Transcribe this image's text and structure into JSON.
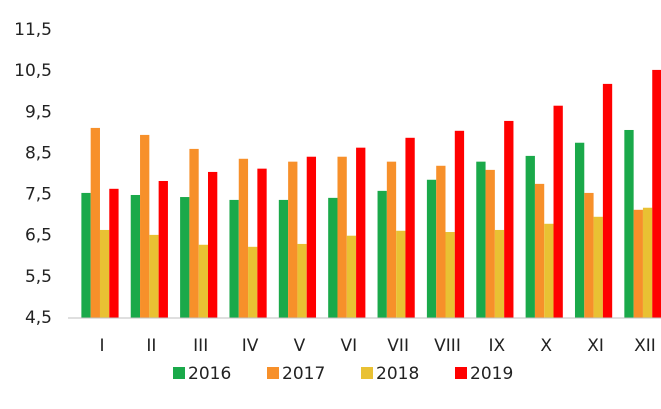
{
  "chart_data": {
    "type": "bar",
    "categories": [
      "I",
      "II",
      "III",
      "IV",
      "V",
      "VI",
      "VII",
      "VIII",
      "IX",
      "X",
      "XI",
      "XII"
    ],
    "series": [
      {
        "name": "2016",
        "color": "#1aa94a",
        "values": [
          7.54,
          7.49,
          7.44,
          7.37,
          7.37,
          7.42,
          7.59,
          7.86,
          8.3,
          8.44,
          8.76,
          9.07
        ]
      },
      {
        "name": "2017",
        "color": "#f7902a",
        "values": [
          9.12,
          8.95,
          8.61,
          8.37,
          8.3,
          8.42,
          8.3,
          8.2,
          8.1,
          7.76,
          7.54,
          7.13
        ]
      },
      {
        "name": "2018",
        "color": "#e9c133",
        "values": [
          6.64,
          6.52,
          6.28,
          6.23,
          6.3,
          6.5,
          6.62,
          6.59,
          6.64,
          6.79,
          6.96,
          7.18
        ]
      },
      {
        "name": "2019",
        "color": "#ff0000",
        "values": [
          7.64,
          7.83,
          8.05,
          8.13,
          8.42,
          8.64,
          8.88,
          9.05,
          9.29,
          9.66,
          10.19,
          10.53
        ]
      }
    ],
    "ylim": [
      4.5,
      11.5
    ],
    "yticks": [
      {
        "value": 4.5,
        "label": "4,5"
      },
      {
        "value": 5.5,
        "label": "5,5"
      },
      {
        "value": 6.5,
        "label": "6,5"
      },
      {
        "value": 7.5,
        "label": "7,5"
      },
      {
        "value": 8.5,
        "label": "8,5"
      },
      {
        "value": 9.5,
        "label": "9,5"
      },
      {
        "value": 10.5,
        "label": "10,5"
      },
      {
        "value": 11.5,
        "label": "11,5"
      }
    ],
    "grid": false,
    "legend": "bottom"
  }
}
